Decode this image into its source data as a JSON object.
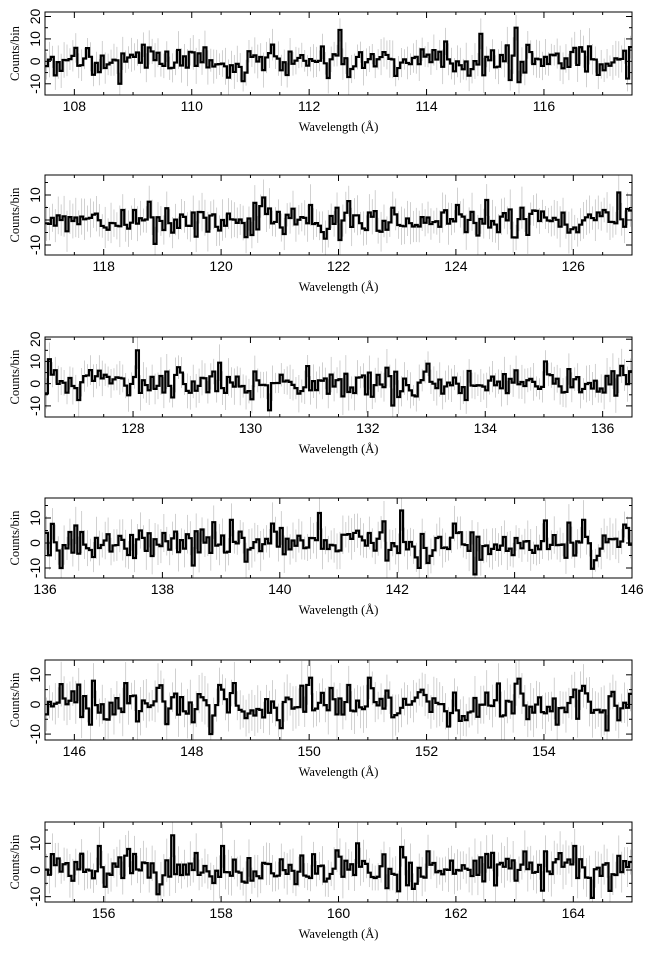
{
  "chart_data": [
    {
      "type": "line",
      "style": "histogram-step-with-error-bars",
      "xlabel": "Wavelength (Å)",
      "ylabel": "Counts/bin",
      "xlim": [
        107.5,
        117.5
      ],
      "ylim": [
        -15,
        22
      ],
      "xticks": [
        108,
        110,
        112,
        114,
        116
      ],
      "yticks": [
        -10,
        0,
        10,
        20
      ],
      "bin_width": 0.05,
      "x": [
        108.0,
        108.5,
        108.8,
        109.0,
        109.5,
        110.0,
        110.5,
        111.0,
        111.5,
        112.0,
        112.5,
        112.65,
        113.0,
        113.5,
        114.0,
        114.5,
        115.0,
        115.5,
        115.65,
        116.0,
        116.5,
        117.0
      ],
      "y": [
        6,
        -3,
        -10,
        2,
        -2,
        4,
        -1,
        2,
        -4,
        1,
        14,
        -7,
        1,
        -3,
        3,
        0,
        2,
        15,
        -5,
        2,
        6,
        -4
      ]
    },
    {
      "type": "line",
      "style": "histogram-step-with-error-bars",
      "xlabel": "Wavelength (Å)",
      "ylabel": "Counts/bin",
      "xlim": [
        117.0,
        127.0
      ],
      "ylim": [
        -14,
        18
      ],
      "xticks": [
        118,
        120,
        122,
        124,
        126
      ],
      "yticks": [
        -10,
        0,
        10
      ],
      "bin_width": 0.05,
      "x": [
        117.5,
        118.0,
        118.5,
        119.0,
        119.5,
        120.0,
        120.5,
        120.7,
        121.0,
        121.5,
        122.0,
        122.5,
        123.0,
        123.5,
        124.0,
        124.5,
        125.0,
        125.5,
        126.0,
        126.5,
        126.75
      ],
      "y": [
        1,
        -3,
        4,
        -4,
        3,
        0,
        -6,
        9,
        -3,
        6,
        -8,
        3,
        -2,
        1,
        6,
        8,
        -7,
        1,
        -3,
        4,
        11
      ]
    },
    {
      "type": "line",
      "style": "histogram-step-with-error-bars",
      "xlabel": "Wavelength (Å)",
      "ylabel": "Counts/bin",
      "xlim": [
        126.5,
        136.5
      ],
      "ylim": [
        -15,
        21
      ],
      "xticks": [
        128,
        130,
        132,
        134,
        136
      ],
      "yticks": [
        -10,
        0,
        10,
        20
      ],
      "bin_width": 0.05,
      "x": [
        126.6,
        127.0,
        127.5,
        128.0,
        128.1,
        128.5,
        129.0,
        129.5,
        130.0,
        130.3,
        130.5,
        131.0,
        131.5,
        132.0,
        132.5,
        133.0,
        133.5,
        134.0,
        134.5,
        135.0,
        135.5,
        136.0,
        136.3
      ],
      "y": [
        11,
        -2,
        4,
        3,
        15,
        -4,
        1,
        -2,
        -7,
        -12,
        4,
        -3,
        2,
        5,
        -6,
        9,
        0,
        -3,
        6,
        10,
        2,
        -4,
        8
      ]
    },
    {
      "type": "line",
      "style": "histogram-step-with-error-bars",
      "xlabel": "Wavelength (Å)",
      "ylabel": "Counts/bin",
      "xlim": [
        136,
        146
      ],
      "ylim": [
        -14,
        18
      ],
      "xticks": [
        136,
        138,
        140,
        142,
        144,
        146
      ],
      "yticks": [
        -10,
        0,
        10
      ],
      "bin_width": 0.05,
      "x": [
        136.25,
        136.5,
        137.0,
        137.5,
        138.0,
        138.5,
        139.0,
        139.5,
        140.0,
        140.5,
        140.7,
        141.0,
        141.5,
        142.0,
        142.1,
        142.5,
        143.0,
        143.5,
        144.0,
        144.5,
        145.0,
        145.5,
        145.9
      ],
      "y": [
        -10,
        7,
        1,
        -6,
        4,
        -9,
        3,
        -2,
        6,
        2,
        12,
        -3,
        4,
        -4,
        13,
        -8,
        4,
        -1,
        2,
        9,
        -5,
        3,
        6
      ]
    },
    {
      "type": "line",
      "style": "histogram-step-with-error-bars",
      "xlabel": "Wavelength (Å)",
      "ylabel": "Counts/bin",
      "xlim": [
        145.5,
        155.5
      ],
      "ylim": [
        -12,
        15
      ],
      "xticks": [
        146,
        148,
        150,
        152,
        154
      ],
      "yticks": [
        -10,
        0,
        10
      ],
      "bin_width": 0.05,
      "x": [
        145.8,
        146.3,
        146.5,
        147.0,
        147.5,
        148.0,
        148.3,
        148.5,
        149.0,
        149.5,
        150.0,
        150.5,
        151.0,
        151.5,
        152.0,
        152.5,
        153.0,
        153.5,
        154.0,
        154.5,
        155.0
      ],
      "y": [
        2,
        8,
        -5,
        3,
        1,
        -6,
        -10,
        5,
        -2,
        -8,
        9,
        2,
        9,
        -3,
        1,
        -2,
        4,
        7,
        -3,
        5,
        -2
      ]
    },
    {
      "type": "line",
      "style": "histogram-step-with-error-bars",
      "xlabel": "Wavelength (Å)",
      "ylabel": "Counts/bin",
      "xlim": [
        155,
        165
      ],
      "ylim": [
        -12,
        18
      ],
      "xticks": [
        156,
        158,
        160,
        162,
        164
      ],
      "yticks": [
        -10,
        0,
        10
      ],
      "bin_width": 0.05,
      "x": [
        155.5,
        155.9,
        156.3,
        156.5,
        157.0,
        157.2,
        157.5,
        158.0,
        158.5,
        159.0,
        159.5,
        160.0,
        160.3,
        160.5,
        161.0,
        161.5,
        162.0,
        162.5,
        163.0,
        163.5,
        164.0,
        164.5,
        165.0
      ],
      "y": [
        3,
        9,
        -3,
        6,
        -2,
        13,
        0,
        9,
        -4,
        4,
        -3,
        5,
        10,
        -1,
        -8,
        7,
        0,
        6,
        -4,
        7,
        9,
        2,
        3
      ]
    }
  ]
}
